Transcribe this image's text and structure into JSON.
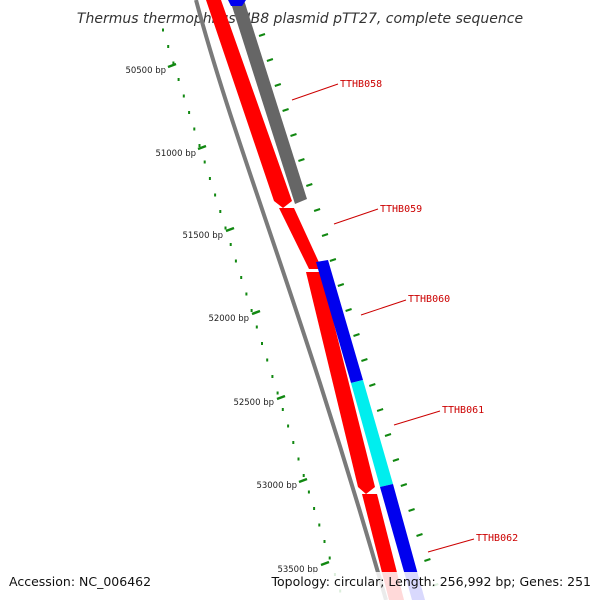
{
  "title": "Thermus thermophilus HB8 plasmid pTT27, complete sequence",
  "accession": "Accession: NC_006462",
  "topology": "Topology: circular; Length: 256,992 bp; Genes: 251",
  "colors": {
    "backbone": "#7a7a7a",
    "red_track": "#ff0000",
    "gray_gene": "#666666",
    "blue_gene": "#0000ee",
    "cyan_gene": "#00eeee",
    "ticks": "#118811",
    "gene_label": "#cc0000"
  },
  "scale": {
    "ticks": [
      {
        "label": "50500 bp"
      },
      {
        "label": "51000 bp"
      },
      {
        "label": "51500 bp"
      },
      {
        "label": "52000 bp"
      },
      {
        "label": "52500 bp"
      },
      {
        "label": "53000 bp"
      },
      {
        "label": "53500 bp"
      }
    ]
  },
  "genes": [
    {
      "name": "TTHB058",
      "color": "#666666"
    },
    {
      "name": "TTHB059",
      "color": "#ff0000"
    },
    {
      "name": "TTHB060",
      "color": "#0000ee"
    },
    {
      "name": "TTHB061",
      "color": "#00eeee"
    },
    {
      "name": "TTHB062",
      "color": "#0000ee"
    }
  ]
}
